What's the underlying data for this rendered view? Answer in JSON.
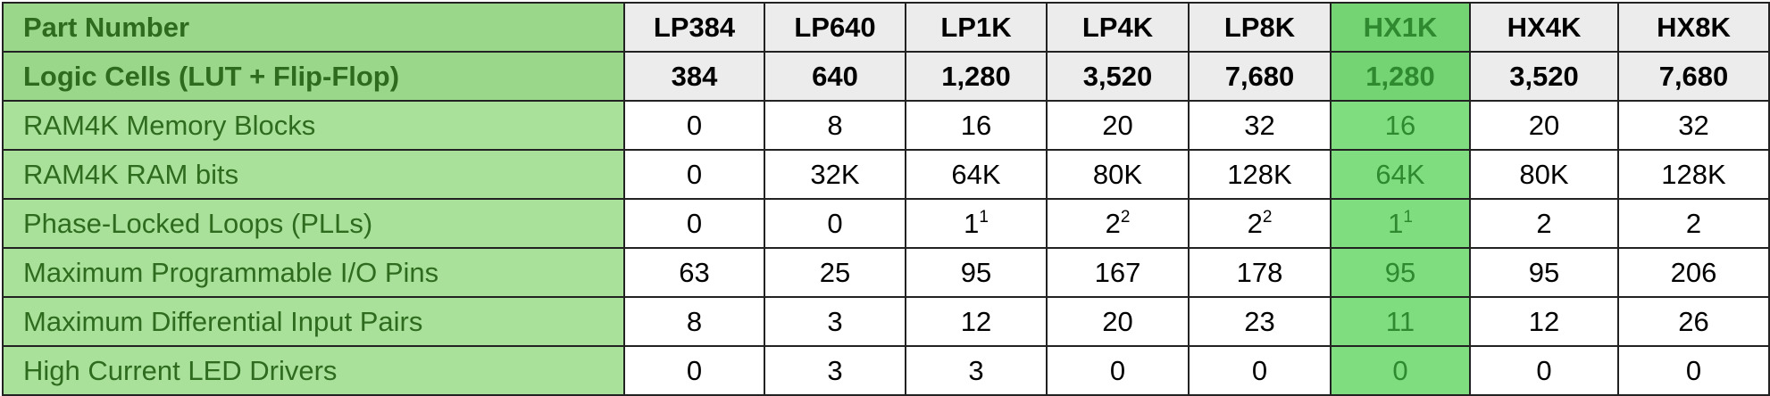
{
  "table": {
    "highlight_column": 5,
    "header_label": "Part Number",
    "parts": [
      "LP384",
      "LP640",
      "LP1K",
      "LP4K",
      "LP8K",
      "HX1K",
      "HX4K",
      "HX8K"
    ],
    "logic_row": {
      "label": "Logic Cells (LUT + Flip-Flop)",
      "values": [
        "384",
        "640",
        "1,280",
        "3,520",
        "7,680",
        "1,280",
        "3,520",
        "7,680"
      ]
    },
    "rows": [
      {
        "label": "RAM4K Memory Blocks",
        "values": [
          "0",
          "8",
          "16",
          "20",
          "32",
          "16",
          "20",
          "32"
        ]
      },
      {
        "label": "RAM4K RAM bits",
        "values": [
          "0",
          "32K",
          "64K",
          "80K",
          "128K",
          "64K",
          "80K",
          "128K"
        ]
      },
      {
        "label": "Phase-Locked Loops (PLLs)",
        "values": [
          "0",
          "0",
          "1",
          "2",
          "2",
          "1",
          "2",
          "2"
        ],
        "notes": [
          "",
          "",
          "1",
          "2",
          "2",
          "1",
          "",
          ""
        ]
      },
      {
        "label": "Maximum Programmable I/O Pins",
        "values": [
          "63",
          "25",
          "95",
          "167",
          "178",
          "95",
          "95",
          "206"
        ]
      },
      {
        "label": "Maximum Differential Input Pairs",
        "values": [
          "8",
          "3",
          "12",
          "20",
          "23",
          "11",
          "12",
          "26"
        ]
      },
      {
        "label": "High Current LED Drivers",
        "values": [
          "0",
          "3",
          "3",
          "0",
          "0",
          "0",
          "0",
          "0"
        ]
      }
    ]
  }
}
